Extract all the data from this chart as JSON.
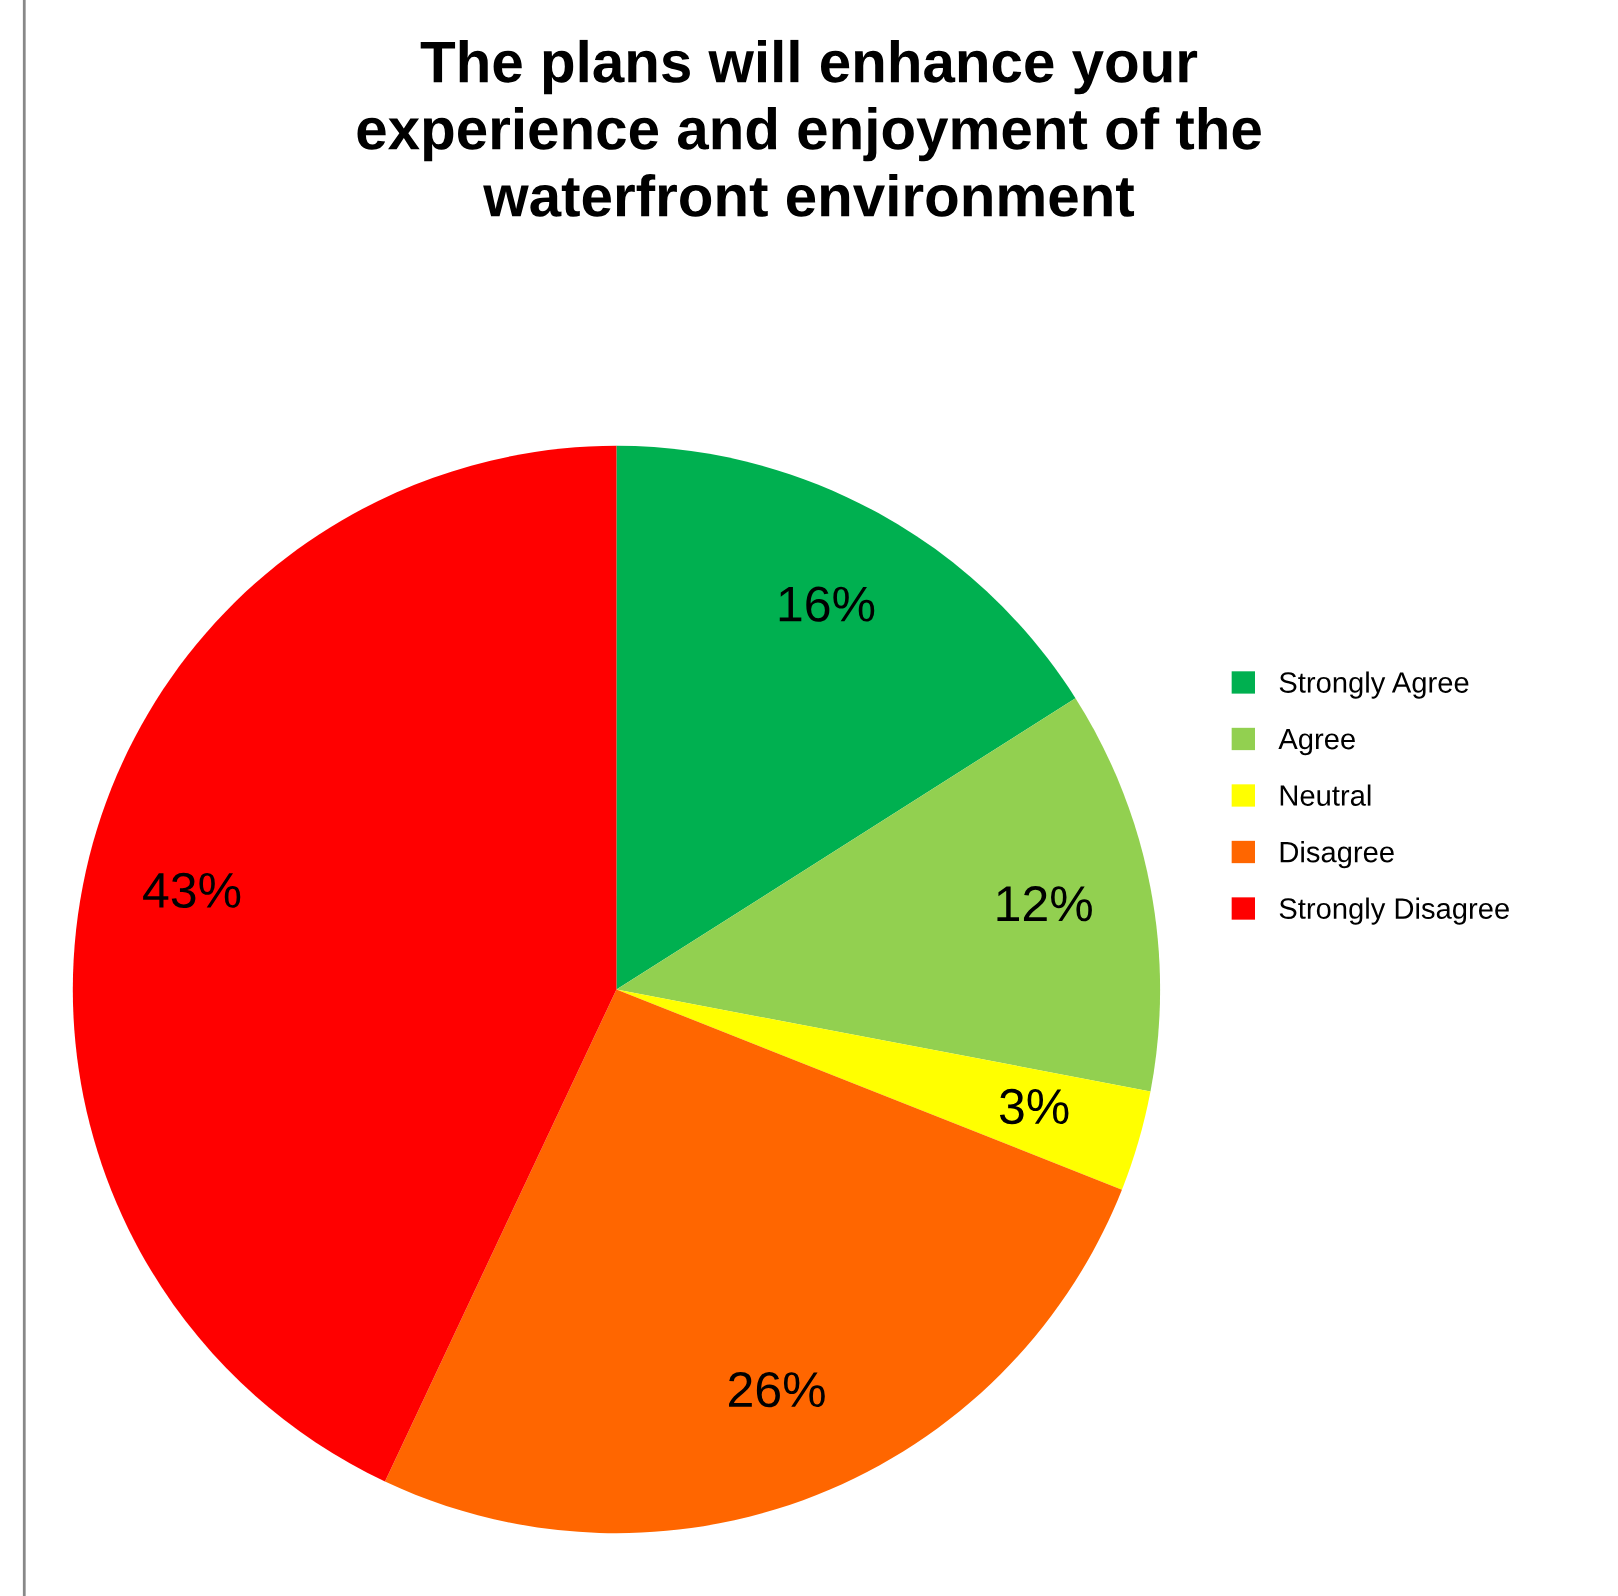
{
  "chart_data": {
    "type": "pie",
    "title": "The plans will enhance your\nexperience and enjoyment of the\nwaterfront environment",
    "categories": [
      "Strongly Agree",
      "Agree",
      "Neutral",
      "Disagree",
      "Strongly Disagree"
    ],
    "values": [
      16,
      12,
      3,
      26,
      43
    ],
    "colors": [
      "#00b050",
      "#92d050",
      "#ffff00",
      "#ff6600",
      "#ff0000"
    ],
    "value_labels": [
      "16%",
      "12%",
      "3%",
      "26%",
      "43%"
    ],
    "legend": "right"
  }
}
